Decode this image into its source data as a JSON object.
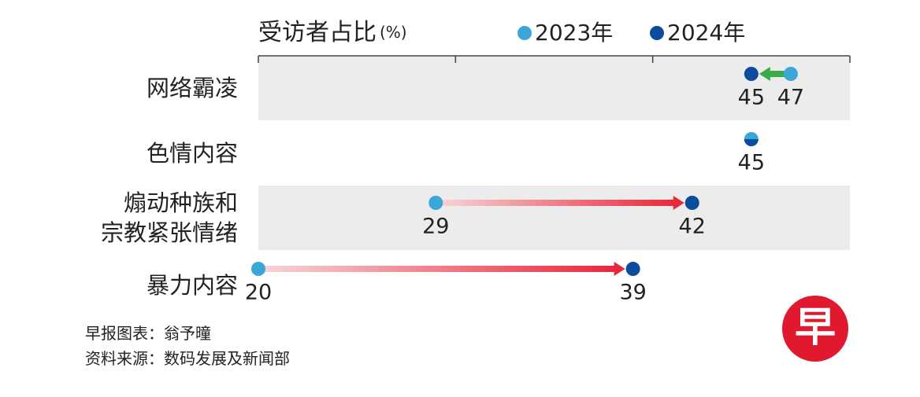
{
  "chart_data": {
    "type": "dumbbell",
    "x_label": "受访者占比",
    "unit": "(%)",
    "categories": [
      "网络霸凌",
      "色情内容",
      "煽动种族和\n宗教紧张情绪",
      "暴力内容"
    ],
    "series": [
      {
        "name": "2023年",
        "color": "#3ba7d8",
        "values": [
          47,
          45,
          29,
          20
        ]
      },
      {
        "name": "2024年",
        "color": "#0b4d9c",
        "values": [
          45,
          45,
          42,
          39
        ]
      }
    ],
    "xlim": [
      20,
      50
    ],
    "xticks": [
      20,
      30,
      40,
      50
    ],
    "credit": "早报图表：翁予曈",
    "source": "资料来源：数码发展及新闻部",
    "logo": "早"
  }
}
